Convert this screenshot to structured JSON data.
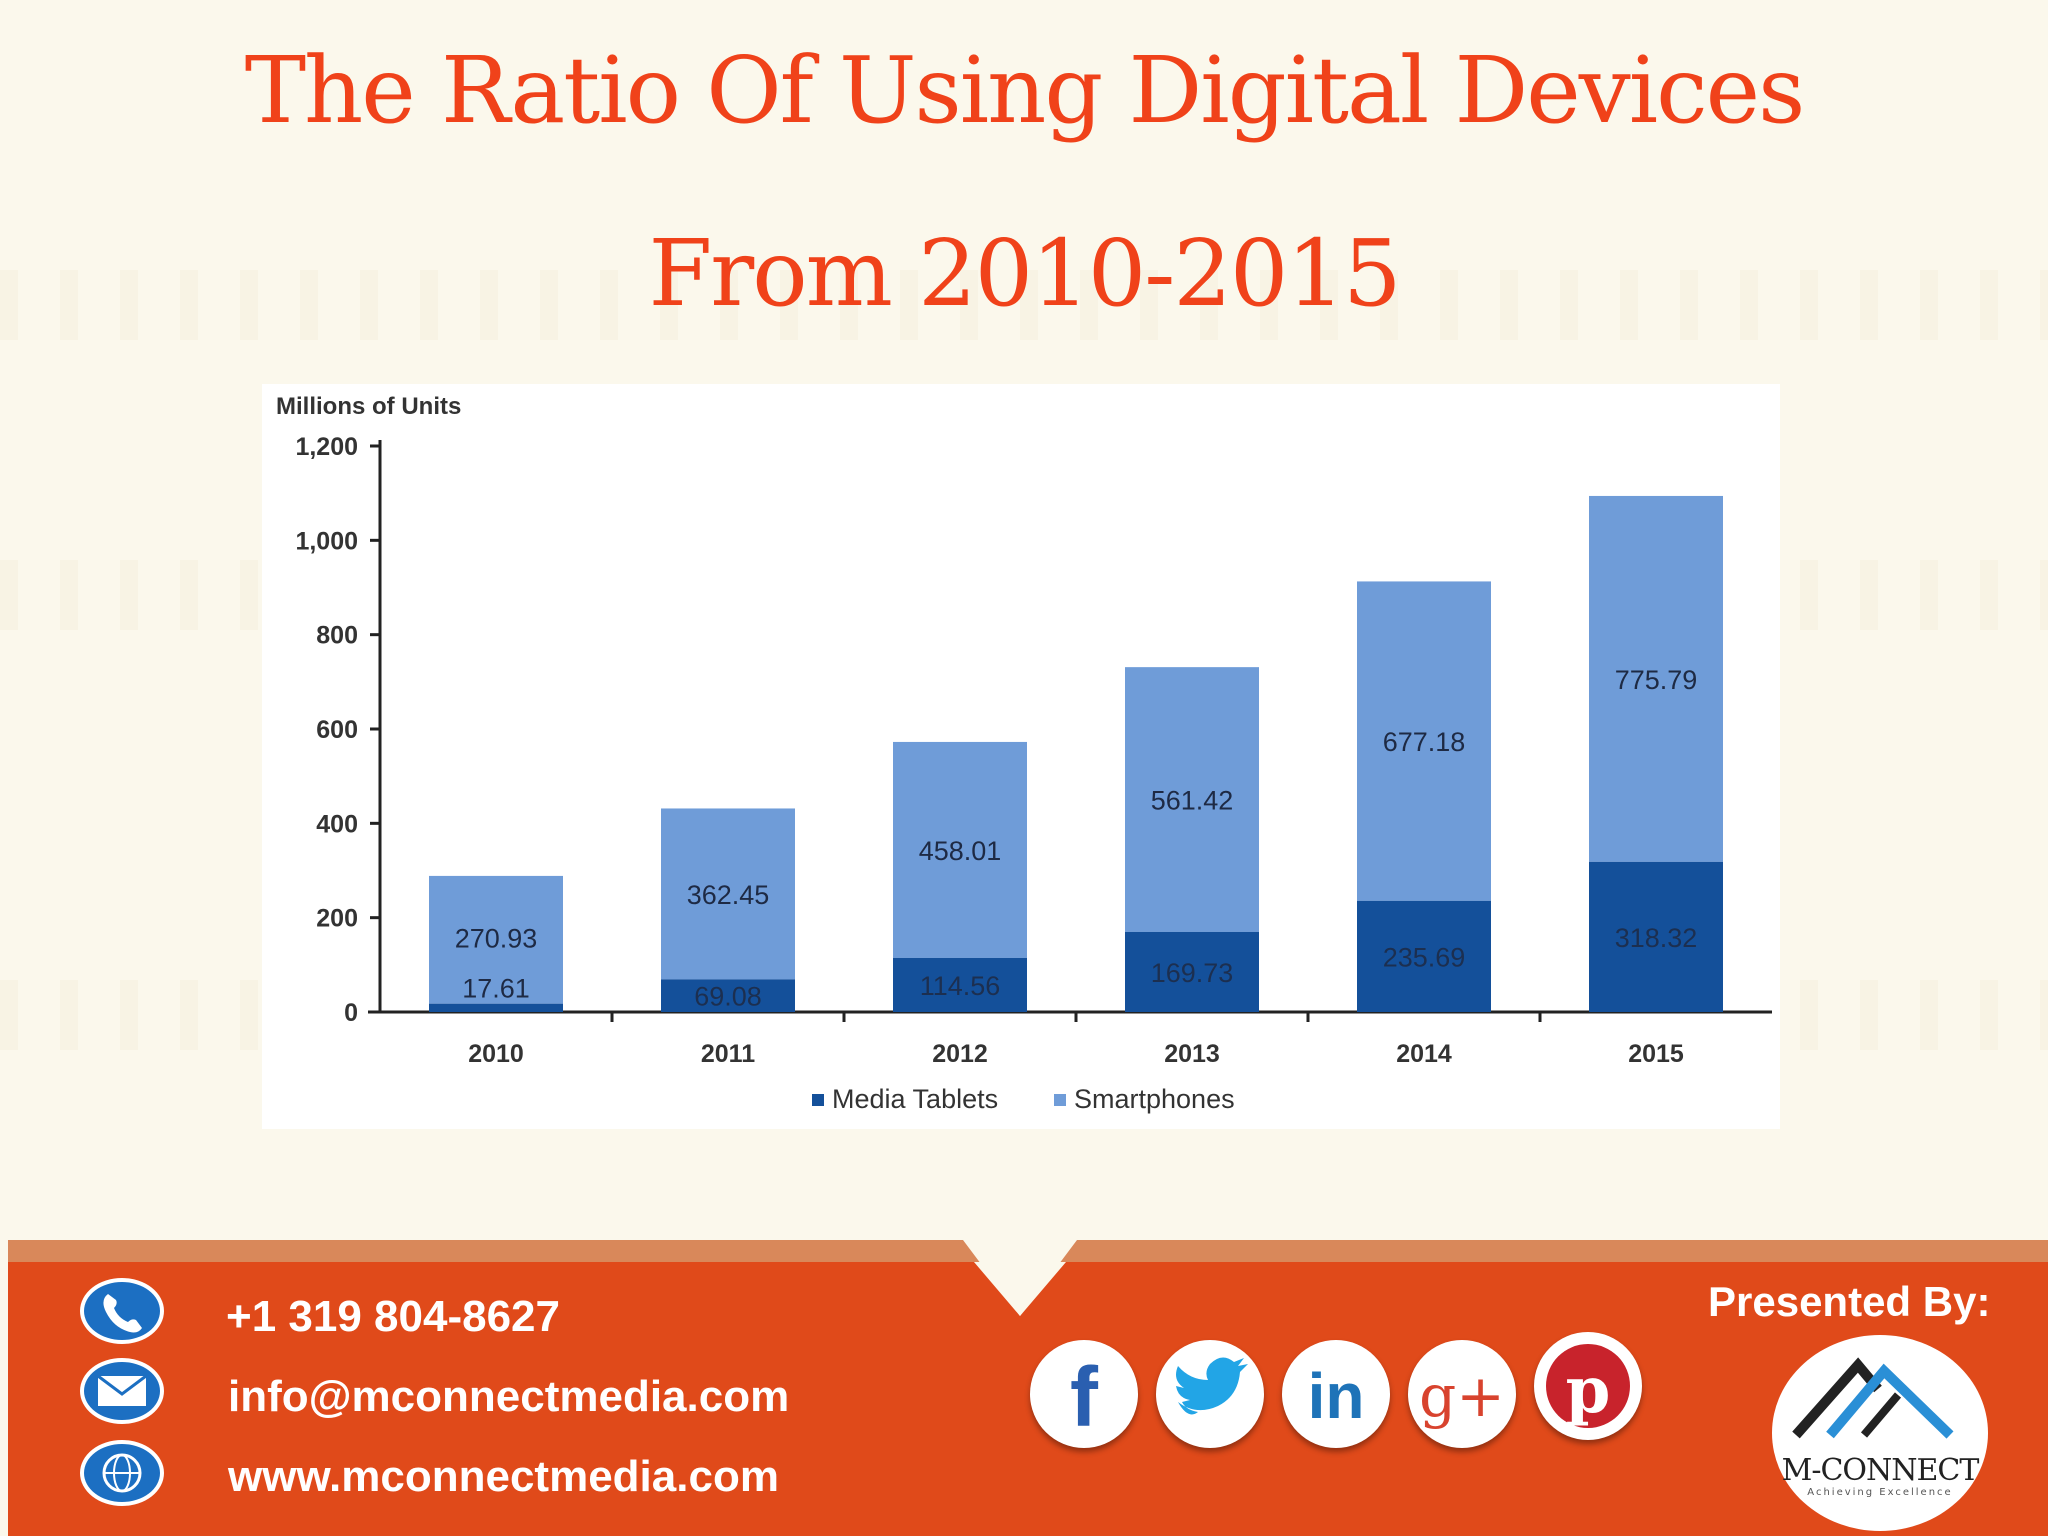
{
  "title": {
    "line1": "The Ratio Of Using Digital Devices",
    "line2": "From 2010-2015"
  },
  "colors": {
    "title": "#f0421a",
    "tablets": "#14509a",
    "smartphones": "#6f9cd8",
    "footer": "#e04a1a",
    "footer_band": "#d9885a"
  },
  "chart_data": {
    "type": "bar",
    "stacked": true,
    "ylabel": "Millions of Units",
    "ylim": [
      0,
      1200
    ],
    "yticks": [
      0,
      200,
      400,
      600,
      800,
      1000,
      1200
    ],
    "ytick_labels": [
      "0",
      "200",
      "400",
      "600",
      "800",
      "1,000",
      "1,200"
    ],
    "categories": [
      "2010",
      "2011",
      "2012",
      "2013",
      "2014",
      "2015"
    ],
    "series": [
      {
        "name": "Media Tablets",
        "values": [
          17.61,
          69.08,
          114.56,
          169.73,
          235.69,
          318.32
        ],
        "labels": [
          "17.61",
          "69.08",
          "114.56",
          "169.73",
          "235.69",
          "318.32"
        ]
      },
      {
        "name": "Smartphones",
        "values": [
          270.93,
          362.45,
          458.01,
          561.42,
          677.18,
          775.79
        ],
        "labels": [
          "270.93",
          "362.45",
          "458.01",
          "561.42",
          "677.18",
          "775.79"
        ]
      }
    ],
    "legend": "bottom",
    "grid": false
  },
  "footer": {
    "phone": "+1 319 804-8627",
    "email": "info@mconnectmedia.com",
    "website": "www.mconnectmedia.com",
    "contact_icons": [
      "phone-icon",
      "mail-icon",
      "globe-icon"
    ],
    "social_icons": [
      "facebook-icon",
      "twitter-icon",
      "linkedin-icon",
      "google-plus-icon",
      "pinterest-icon"
    ],
    "presented_by": "Presented By:",
    "logo_name": "M-CONNECT",
    "logo_tagline": "Achieving Excellence"
  }
}
